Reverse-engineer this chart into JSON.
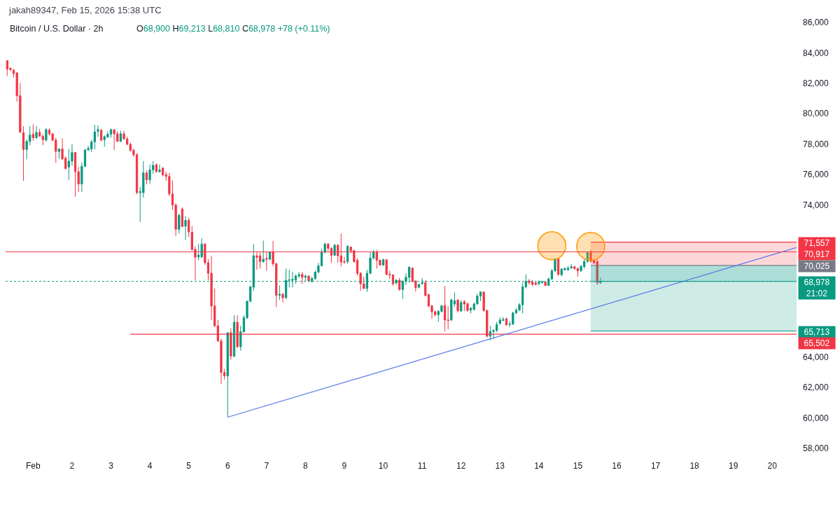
{
  "chart_data": {
    "type": "candlestick",
    "title": "Bitcoin / U.S. Dollar · 2h",
    "subtitle": "O68,900 H69,213 L68,810 C68,978 +78 (+0.11%)",
    "annotations": [
      "jakah89347, Feb 15, 2026 15:38 UTC"
    ],
    "x": [
      "2026-01-31T08:00",
      "2026-01-31T10:00",
      "2026-01-31T12:00",
      "2026-01-31T14:00",
      "2026-01-31T16:00",
      "2026-01-31T18:00",
      "2026-01-31T20:00",
      "2026-01-31T22:00",
      "2026-02-01T00:00",
      "2026-02-01T02:00",
      "2026-02-01T04:00",
      "2026-02-01T06:00",
      "2026-02-01T08:00",
      "2026-02-01T10:00",
      "2026-02-01T12:00",
      "2026-02-01T14:00",
      "2026-02-01T16:00",
      "2026-02-01T18:00",
      "2026-02-01T20:00",
      "2026-02-01T22:00",
      "2026-02-02T00:00",
      "2026-02-02T02:00",
      "2026-02-02T04:00",
      "2026-02-02T06:00",
      "2026-02-02T08:00",
      "2026-02-02T10:00",
      "2026-02-02T12:00",
      "2026-02-02T14:00",
      "2026-02-02T16:00",
      "2026-02-02T18:00",
      "2026-02-02T20:00",
      "2026-02-02T22:00",
      "2026-02-03T00:00",
      "2026-02-03T02:00",
      "2026-02-03T04:00",
      "2026-02-03T06:00",
      "2026-02-03T08:00",
      "2026-02-03T10:00",
      "2026-02-03T12:00",
      "2026-02-03T14:00",
      "2026-02-03T16:00",
      "2026-02-03T18:00",
      "2026-02-03T20:00",
      "2026-02-03T22:00",
      "2026-02-04T00:00",
      "2026-02-04T02:00",
      "2026-02-04T04:00",
      "2026-02-04T06:00",
      "2026-02-04T08:00",
      "2026-02-04T10:00",
      "2026-02-04T12:00",
      "2026-02-04T14:00",
      "2026-02-04T16:00",
      "2026-02-04T18:00",
      "2026-02-04T20:00",
      "2026-02-04T22:00",
      "2026-02-05T00:00",
      "2026-02-05T02:00",
      "2026-02-05T04:00",
      "2026-02-05T06:00",
      "2026-02-05T08:00",
      "2026-02-05T10:00",
      "2026-02-05T12:00",
      "2026-02-05T14:00",
      "2026-02-05T16:00",
      "2026-02-05T18:00",
      "2026-02-05T20:00",
      "2026-02-05T22:00",
      "2026-02-06T00:00",
      "2026-02-06T02:00",
      "2026-02-06T04:00",
      "2026-02-06T06:00",
      "2026-02-06T08:00",
      "2026-02-06T10:00",
      "2026-02-06T12:00",
      "2026-02-06T14:00",
      "2026-02-06T16:00",
      "2026-02-06T18:00",
      "2026-02-06T20:00",
      "2026-02-06T22:00",
      "2026-02-07T00:00",
      "2026-02-07T02:00",
      "2026-02-07T04:00",
      "2026-02-07T06:00",
      "2026-02-07T08:00",
      "2026-02-07T10:00",
      "2026-02-07T12:00",
      "2026-02-07T14:00",
      "2026-02-07T16:00",
      "2026-02-07T18:00",
      "2026-02-07T20:00",
      "2026-02-07T22:00",
      "2026-02-08T00:00",
      "2026-02-08T02:00",
      "2026-02-08T04:00",
      "2026-02-08T06:00",
      "2026-02-08T08:00",
      "2026-02-08T10:00",
      "2026-02-08T12:00",
      "2026-02-08T14:00",
      "2026-02-08T16:00",
      "2026-02-08T18:00",
      "2026-02-08T20:00",
      "2026-02-08T22:00",
      "2026-02-09T00:00",
      "2026-02-09T02:00",
      "2026-02-09T04:00",
      "2026-02-09T06:00",
      "2026-02-09T08:00",
      "2026-02-09T10:00",
      "2026-02-09T12:00",
      "2026-02-09T14:00",
      "2026-02-09T16:00",
      "2026-02-09T18:00",
      "2026-02-09T20:00",
      "2026-02-09T22:00",
      "2026-02-10T00:00",
      "2026-02-10T02:00",
      "2026-02-10T04:00",
      "2026-02-10T06:00",
      "2026-02-10T08:00",
      "2026-02-10T10:00",
      "2026-02-10T12:00",
      "2026-02-10T14:00",
      "2026-02-10T16:00",
      "2026-02-10T18:00",
      "2026-02-10T20:00",
      "2026-02-10T22:00",
      "2026-02-11T00:00",
      "2026-02-11T02:00",
      "2026-02-11T04:00",
      "2026-02-11T06:00",
      "2026-02-11T08:00",
      "2026-02-11T10:00",
      "2026-02-11T12:00",
      "2026-02-11T14:00",
      "2026-02-11T16:00",
      "2026-02-11T18:00",
      "2026-02-11T20:00",
      "2026-02-11T22:00",
      "2026-02-12T00:00",
      "2026-02-12T02:00",
      "2026-02-12T04:00",
      "2026-02-12T06:00",
      "2026-02-12T08:00",
      "2026-02-12T10:00",
      "2026-02-12T12:00",
      "2026-02-12T14:00",
      "2026-02-12T16:00",
      "2026-02-12T18:00",
      "2026-02-12T20:00",
      "2026-02-12T22:00",
      "2026-02-13T00:00",
      "2026-02-13T02:00",
      "2026-02-13T04:00",
      "2026-02-13T06:00",
      "2026-02-13T08:00",
      "2026-02-13T10:00",
      "2026-02-13T12:00",
      "2026-02-13T14:00",
      "2026-02-13T16:00",
      "2026-02-13T18:00",
      "2026-02-13T20:00",
      "2026-02-13T22:00",
      "2026-02-14T00:00",
      "2026-02-14T02:00",
      "2026-02-14T04:00",
      "2026-02-14T06:00",
      "2026-02-14T08:00",
      "2026-02-14T10:00",
      "2026-02-14T12:00",
      "2026-02-14T14:00",
      "2026-02-14T16:00",
      "2026-02-14T18:00",
      "2026-02-14T20:00",
      "2026-02-14T22:00",
      "2026-02-15T00:00",
      "2026-02-15T02:00",
      "2026-02-15T04:00",
      "2026-02-15T06:00",
      "2026-02-15T08:00",
      "2026-02-15T10:00",
      "2026-02-15T12:00",
      "2026-02-15T14:00"
    ],
    "ohlc": [
      [
        83480,
        83510,
        82480,
        82940
      ],
      [
        82990,
        83050,
        82790,
        82900
      ],
      [
        82870,
        82940,
        82380,
        82640
      ],
      [
        82680,
        82740,
        80790,
        81180
      ],
      [
        81180,
        82020,
        78720,
        78800
      ],
      [
        78750,
        79180,
        75580,
        77650
      ],
      [
        77650,
        78290,
        77000,
        78180
      ],
      [
        78180,
        79180,
        77930,
        78600
      ],
      [
        78650,
        79300,
        78230,
        78420
      ],
      [
        78420,
        79180,
        78340,
        78770
      ],
      [
        78770,
        79000,
        78490,
        78520
      ],
      [
        78520,
        78650,
        77930,
        78290
      ],
      [
        78260,
        79060,
        78180,
        78950
      ],
      [
        78920,
        79030,
        78570,
        78680
      ],
      [
        78680,
        78720,
        78180,
        78260
      ],
      [
        78260,
        78420,
        76760,
        77520
      ],
      [
        77520,
        77720,
        77030,
        77680
      ],
      [
        77680,
        78380,
        76950,
        77030
      ],
      [
        77080,
        77190,
        76340,
        76390
      ],
      [
        76500,
        77680,
        75650,
        76880
      ],
      [
        76880,
        77990,
        76570,
        77450
      ],
      [
        77450,
        77490,
        74530,
        76190
      ],
      [
        76190,
        76500,
        74850,
        75380
      ],
      [
        75380,
        76800,
        74850,
        76540
      ],
      [
        76540,
        77680,
        76540,
        77620
      ],
      [
        77620,
        77880,
        77600,
        77720
      ],
      [
        77680,
        78260,
        77490,
        78150
      ],
      [
        78150,
        79260,
        77650,
        78800
      ],
      [
        78850,
        79240,
        78490,
        78950
      ],
      [
        78910,
        79000,
        78180,
        78260
      ],
      [
        78290,
        78570,
        77830,
        78490
      ],
      [
        78460,
        78850,
        78420,
        78650
      ],
      [
        78650,
        79030,
        78420,
        78950
      ],
      [
        78940,
        79000,
        77620,
        78680
      ],
      [
        78680,
        78850,
        78140,
        78180
      ],
      [
        78180,
        78880,
        78140,
        78680
      ],
      [
        78680,
        78880,
        78290,
        78340
      ],
      [
        78340,
        78490,
        77930,
        77990
      ],
      [
        77990,
        78100,
        77500,
        77600
      ],
      [
        77600,
        77700,
        77150,
        77300
      ],
      [
        77300,
        77400,
        74700,
        74810
      ],
      [
        74810,
        75190,
        72890,
        74880
      ],
      [
        74810,
        76880,
        74500,
        76110
      ],
      [
        76110,
        76270,
        75350,
        75650
      ],
      [
        75650,
        76650,
        75380,
        76300
      ],
      [
        76300,
        76880,
        76040,
        76600
      ],
      [
        76650,
        76730,
        76110,
        76190
      ],
      [
        76190,
        76650,
        76110,
        76300
      ],
      [
        76420,
        76500,
        75880,
        75990
      ],
      [
        75990,
        76190,
        75580,
        75880
      ],
      [
        75880,
        76110,
        74580,
        74730
      ],
      [
        74730,
        75620,
        73690,
        73990
      ],
      [
        73990,
        74120,
        71970,
        72400
      ],
      [
        72400,
        73430,
        72120,
        73320
      ],
      [
        73730,
        73840,
        72550,
        72580
      ],
      [
        72610,
        73270,
        71690,
        72990
      ],
      [
        72990,
        73170,
        71890,
        72230
      ],
      [
        72200,
        72610,
        71020,
        71050
      ],
      [
        71080,
        71280,
        69050,
        70560
      ],
      [
        70590,
        71430,
        70360,
        70710
      ],
      [
        70590,
        71810,
        70510,
        71430
      ],
      [
        71430,
        71510,
        70050,
        70200
      ],
      [
        70200,
        70430,
        69050,
        69510
      ],
      [
        69510,
        70660,
        66440,
        67360
      ],
      [
        67360,
        68510,
        65980,
        66060
      ],
      [
        66060,
        66440,
        64980,
        65060
      ],
      [
        65060,
        65210,
        62220,
        62990
      ],
      [
        62990,
        63220,
        62530,
        62760
      ],
      [
        62760,
        65650,
        60050,
        65600
      ],
      [
        65600,
        65900,
        63830,
        64060
      ],
      [
        64060,
        66750,
        63990,
        66290
      ],
      [
        66290,
        66750,
        64600,
        64680
      ],
      [
        64680,
        66060,
        64420,
        65670
      ],
      [
        65670,
        66750,
        65600,
        66590
      ],
      [
        66590,
        67700,
        66500,
        67670
      ],
      [
        67670,
        68700,
        67600,
        68620
      ],
      [
        68590,
        71430,
        68360,
        70660
      ],
      [
        70660,
        70890,
        69740,
        70560
      ],
      [
        70660,
        70890,
        69820,
        70280
      ],
      [
        70280,
        71660,
        70200,
        70430
      ],
      [
        70490,
        70890,
        69670,
        70430
      ],
      [
        70430,
        70930,
        70360,
        70890
      ],
      [
        70890,
        71630,
        69970,
        70130
      ],
      [
        70130,
        70200,
        67290,
        68060
      ],
      [
        68060,
        68710,
        67750,
        68130
      ],
      [
        68130,
        68210,
        67590,
        67900
      ],
      [
        67900,
        69820,
        67820,
        69050
      ],
      [
        69050,
        69740,
        68590,
        69080
      ],
      [
        69050,
        69590,
        68590,
        69110
      ],
      [
        69080,
        69440,
        68820,
        69330
      ],
      [
        69330,
        69590,
        69210,
        69420
      ],
      [
        69440,
        69590,
        68820,
        69240
      ],
      [
        69240,
        69440,
        68980,
        69330
      ],
      [
        69330,
        69360,
        68980,
        69020
      ],
      [
        68980,
        69280,
        68900,
        69160
      ],
      [
        69160,
        69670,
        69080,
        69590
      ],
      [
        69590,
        70200,
        69510,
        70000
      ],
      [
        70000,
        71120,
        69970,
        70890
      ],
      [
        70890,
        71510,
        70820,
        71430
      ],
      [
        71430,
        71510,
        70970,
        71150
      ],
      [
        71150,
        71230,
        70200,
        70690
      ],
      [
        70690,
        71430,
        70660,
        71350
      ],
      [
        71350,
        71430,
        70200,
        70660
      ],
      [
        70660,
        72120,
        69970,
        70250
      ],
      [
        70280,
        70590,
        70130,
        70230
      ],
      [
        70280,
        71360,
        70130,
        71280
      ],
      [
        71230,
        71280,
        70820,
        71000
      ],
      [
        71000,
        71050,
        70200,
        70280
      ],
      [
        70360,
        70510,
        69360,
        69510
      ],
      [
        69510,
        69590,
        68360,
        68820
      ],
      [
        68820,
        69280,
        68470,
        68510
      ],
      [
        68510,
        69740,
        68280,
        69510
      ],
      [
        69510,
        70890,
        69440,
        70510
      ],
      [
        70510,
        71050,
        70430,
        70890
      ],
      [
        70890,
        71050,
        69820,
        70360
      ],
      [
        70360,
        70430,
        70000,
        70050
      ],
      [
        70050,
        70460,
        70000,
        70400
      ],
      [
        70400,
        70430,
        69360,
        69440
      ],
      [
        69440,
        69670,
        69130,
        69400
      ],
      [
        69400,
        69440,
        68670,
        68820
      ],
      [
        68870,
        69130,
        68750,
        69050
      ],
      [
        69050,
        69210,
        68360,
        68440
      ],
      [
        68440,
        69050,
        67820,
        68980
      ],
      [
        68980,
        69510,
        68750,
        69240
      ],
      [
        69240,
        69970,
        68900,
        69900
      ],
      [
        69850,
        69900,
        68900,
        68980
      ],
      [
        69010,
        69050,
        68310,
        68560
      ],
      [
        68590,
        68820,
        68510,
        68780
      ],
      [
        68820,
        69200,
        68750,
        68900
      ],
      [
        68900,
        69050,
        67980,
        68050
      ],
      [
        68100,
        68160,
        67290,
        67360
      ],
      [
        67360,
        67440,
        66520,
        66980
      ],
      [
        66980,
        67060,
        66670,
        66780
      ],
      [
        66780,
        67090,
        66320,
        67010
      ],
      [
        67010,
        67440,
        66930,
        67360
      ],
      [
        67390,
        68670,
        65700,
        66440
      ],
      [
        66440,
        67360,
        65830,
        66410
      ],
      [
        66440,
        67850,
        66360,
        67750
      ],
      [
        67490,
        68250,
        67290,
        67700
      ],
      [
        67750,
        67820,
        66930,
        67060
      ],
      [
        67030,
        67750,
        66980,
        67590
      ],
      [
        67640,
        67750,
        67030,
        67490
      ],
      [
        67520,
        67550,
        66980,
        67060
      ],
      [
        67090,
        67290,
        66870,
        67210
      ],
      [
        67130,
        67590,
        67060,
        67490
      ],
      [
        67490,
        68160,
        67440,
        68010
      ],
      [
        68010,
        68320,
        67670,
        68280
      ],
      [
        68280,
        68320,
        66980,
        67060
      ],
      [
        67060,
        67130,
        65290,
        65370
      ],
      [
        65370,
        66060,
        65090,
        65680
      ],
      [
        65680,
        65830,
        65180,
        65750
      ],
      [
        65750,
        66320,
        65640,
        66140
      ],
      [
        66210,
        66600,
        66140,
        66440
      ],
      [
        66410,
        66630,
        66370,
        66470
      ],
      [
        66520,
        66600,
        66060,
        66110
      ],
      [
        66140,
        66370,
        65980,
        66170
      ],
      [
        66170,
        66980,
        66110,
        66900
      ],
      [
        66900,
        67210,
        66830,
        67090
      ],
      [
        67090,
        67550,
        67030,
        67440
      ],
      [
        67440,
        68900,
        66870,
        68620
      ],
      [
        68620,
        69440,
        68510,
        68980
      ],
      [
        69010,
        69130,
        68740,
        68900
      ],
      [
        68930,
        69080,
        68670,
        68780
      ],
      [
        68870,
        68980,
        68710,
        68780
      ],
      [
        68820,
        69050,
        68710,
        68930
      ],
      [
        68900,
        69020,
        68820,
        68960
      ],
      [
        68930,
        68980,
        68670,
        68710
      ],
      [
        68710,
        69240,
        68670,
        69130
      ],
      [
        69130,
        69790,
        69080,
        69670
      ],
      [
        69670,
        70510,
        69590,
        70460
      ],
      [
        70460,
        70510,
        69330,
        69440
      ],
      [
        69410,
        69850,
        69330,
        69790
      ],
      [
        69740,
        69900,
        69670,
        69820
      ],
      [
        69740,
        69980,
        69670,
        69850
      ],
      [
        69850,
        70130,
        69820,
        69940
      ],
      [
        69940,
        70000,
        69740,
        69820
      ],
      [
        69820,
        69900,
        69280,
        69670
      ],
      [
        69670,
        70050,
        69600,
        69970
      ],
      [
        69940,
        70430,
        69820,
        70280
      ],
      [
        70280,
        70920,
        70200,
        70860
      ],
      [
        70860,
        71050,
        70200,
        70310
      ],
      [
        70360,
        70430,
        70130,
        70200
      ],
      [
        70280,
        70430,
        68740,
        68900
      ],
      [
        68900,
        69213,
        68810,
        68978
      ]
    ],
    "colors": [
      "#f23645",
      "#f23645",
      "#f23645",
      "#f23645",
      "#f23645",
      "#f23645",
      "#089981",
      "#089981",
      "#f23645",
      "#089981",
      "#f23645",
      "#f23645",
      "#089981",
      "#f23645",
      "#f23645",
      "#f23645",
      "#089981",
      "#f23645",
      "#f23645",
      "#089981",
      "#089981",
      "#f23645",
      "#f23645",
      "#089981",
      "#089981",
      "#089981",
      "#089981",
      "#089981",
      "#089981",
      "#f23645",
      "#089981",
      "#089981",
      "#089981",
      "#f23645",
      "#f23645",
      "#089981",
      "#f23645",
      "#f23645",
      "#f23645",
      "#f23645",
      "#f23645",
      "#089981",
      "#089981",
      "#f23645",
      "#089981",
      "#089981",
      "#f23645",
      "#089981",
      "#f23645",
      "#f23645",
      "#f23645",
      "#f23645",
      "#f23645",
      "#089981",
      "#f23645",
      "#089981",
      "#f23645",
      "#f23645",
      "#f23645",
      "#089981",
      "#089981",
      "#f23645",
      "#f23645",
      "#f23645",
      "#f23645",
      "#f23645",
      "#f23645",
      "#f23645",
      "#089981",
      "#f23645",
      "#089981",
      "#f23645",
      "#089981",
      "#089981",
      "#089981",
      "#089981",
      "#089981",
      "#f23645",
      "#f23645",
      "#089981",
      "#f23645",
      "#089981",
      "#f23645",
      "#f23645",
      "#089981",
      "#f23645",
      "#089981",
      "#089981",
      "#089981",
      "#089981",
      "#089981",
      "#f23645",
      "#089981",
      "#f23645",
      "#089981",
      "#089981",
      "#089981",
      "#089981",
      "#089981",
      "#f23645",
      "#f23645",
      "#089981",
      "#f23645",
      "#f23645",
      "#f23645",
      "#089981",
      "#f23645",
      "#f23645",
      "#f23645",
      "#f23645",
      "#f23645",
      "#089981",
      "#089981",
      "#089981",
      "#f23645",
      "#f23645",
      "#089981",
      "#f23645",
      "#f23645",
      "#f23645",
      "#089981",
      "#f23645",
      "#089981",
      "#089981",
      "#089981",
      "#f23645",
      "#f23645",
      "#089981",
      "#089981",
      "#f23645",
      "#f23645",
      "#f23645",
      "#f23645",
      "#089981",
      "#089981",
      "#f23645",
      "#f23645",
      "#089981",
      "#089981",
      "#f23645",
      "#089981",
      "#f23645",
      "#f23645",
      "#089981",
      "#089981",
      "#089981",
      "#089981",
      "#f23645",
      "#f23645",
      "#089981",
      "#089981",
      "#089981",
      "#089981",
      "#089981",
      "#f23645",
      "#089981",
      "#089981",
      "#089981",
      "#089981",
      "#089981",
      "#089981",
      "#f23645",
      "#f23645",
      "#f23645",
      "#089981",
      "#089981",
      "#f23645",
      "#089981",
      "#089981",
      "#089981",
      "#f23645",
      "#089981",
      "#089981",
      "#089981",
      "#089981",
      "#f23645",
      "#f23645",
      "#089981",
      "#089981",
      "#089981",
      "#f23645",
      "#f23645",
      "#f23645",
      "#089981"
    ],
    "xlim": [
      "2026-01-31T07:00",
      "2026-02-20T15:00"
    ],
    "xticks": [
      {
        "value": "2026-02-01",
        "label": "Feb"
      },
      {
        "value": "2026-02-02",
        "label": "2"
      },
      {
        "value": "2026-02-03",
        "label": "3"
      },
      {
        "value": "2026-02-04",
        "label": "4"
      },
      {
        "value": "2026-02-05",
        "label": "5"
      },
      {
        "value": "2026-02-06",
        "label": "6"
      },
      {
        "value": "2026-02-07",
        "label": "7"
      },
      {
        "value": "2026-02-08",
        "label": "8"
      },
      {
        "value": "2026-02-09",
        "label": "9"
      },
      {
        "value": "2026-02-10",
        "label": "10"
      },
      {
        "value": "2026-02-11",
        "label": "11"
      },
      {
        "value": "2026-02-12",
        "label": "12"
      },
      {
        "value": "2026-02-13",
        "label": "13"
      },
      {
        "value": "2026-02-14",
        "label": "14"
      },
      {
        "value": "2026-02-15",
        "label": "15"
      },
      {
        "value": "2026-02-16",
        "label": "16"
      },
      {
        "value": "2026-02-17",
        "label": "17"
      },
      {
        "value": "2026-02-18",
        "label": "18"
      },
      {
        "value": "2026-02-19",
        "label": "19"
      },
      {
        "value": "2026-02-20",
        "label": "20"
      }
    ],
    "ylim": [
      58000,
      86000
    ],
    "yticks": [
      {
        "value": 58000,
        "label": "58,000"
      },
      {
        "value": 60000,
        "label": "60,000"
      },
      {
        "value": 62000,
        "label": "62,000"
      },
      {
        "value": 64000,
        "label": "64,000"
      },
      {
        "value": 74000,
        "label": "74,000"
      },
      {
        "value": 76000,
        "label": "76,000"
      },
      {
        "value": 78000,
        "label": "78,000"
      },
      {
        "value": 80000,
        "label": "80,000"
      },
      {
        "value": 82000,
        "label": "82,000"
      },
      {
        "value": 84000,
        "label": "84,000"
      },
      {
        "value": 86000,
        "label": "86,000"
      }
    ],
    "ref_lines": [
      {
        "axis": "y",
        "value": 70917,
        "label": "70,917",
        "color": "#f23645",
        "line_style": "solid"
      },
      {
        "axis": "y",
        "value": 68978,
        "label": "68,978\n21:02",
        "color": "#089981",
        "line_style": "dotted"
      }
    ],
    "series": [
      {
        "type": "line",
        "color": "#f23645",
        "x": [
          "2026-02-15T08:00",
          "2026-02-20T15:00"
        ],
        "values": [
          71557,
          71557
        ],
        "lower": [
          70025,
          70025
        ],
        "upper": [
          71557,
          71557
        ],
        "value_labels": [
          null,
          "71,557"
        ]
      },
      {
        "type": "line",
        "color": "#089981",
        "x": [
          "2026-02-15T08:00",
          "2026-02-20T15:00"
        ],
        "values": [
          65713,
          65713
        ],
        "lower": [
          65713,
          65713
        ],
        "upper": [
          70025,
          70025
        ],
        "value_labels": [
          null,
          "65,713"
        ]
      },
      {
        "type": "line",
        "color": "#26a69a",
        "x": [
          "2026-02-15T08:00",
          "2026-02-20T15:00"
        ],
        "values": [
          68978,
          68978
        ],
        "lower": [
          68978,
          68978
        ],
        "upper": [
          70025,
          70025
        ]
      },
      {
        "type": "line",
        "color": "#787b86",
        "x": [
          "2026-02-15T08:00",
          "2026-02-20T15:00"
        ],
        "values": [
          70025,
          70025
        ],
        "value_labels": [
          null,
          "70,025"
        ]
      },
      {
        "type": "line",
        "color": "#f23645",
        "x": [
          "2026-02-03T12:00",
          "2026-02-20T15:00"
        ],
        "values": [
          65502,
          65502
        ],
        "value_labels": [
          null,
          "65,502"
        ]
      },
      {
        "type": "line",
        "color": "#5677e8",
        "x": [
          "2026-02-06T00:00",
          "2026-02-20T15:00"
        ],
        "values": [
          60050,
          71200
        ]
      },
      {
        "type": "scatter",
        "color": "#ff9800",
        "marker": "circle",
        "x": [
          "2026-02-14T08:00",
          "2026-02-15T08:00"
        ],
        "values": [
          71320,
          71280
        ]
      }
    ]
  }
}
